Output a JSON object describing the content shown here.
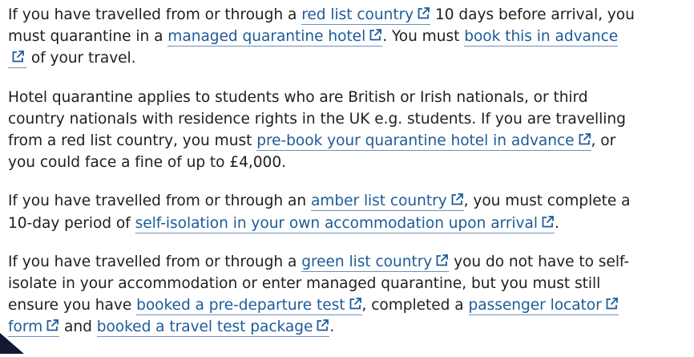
{
  "paragraphs": [
    {
      "lines": [
        [
          {
            "text": "If you have travelled from or through a "
          },
          {
            "link": "red list country"
          },
          {
            "text": " 10 days before arrival, you"
          }
        ],
        [
          {
            "text": "must quarantine in a "
          },
          {
            "link": "managed quarantine hotel"
          },
          {
            "text": ". You must "
          },
          {
            "link": "book this in advance"
          }
        ],
        [
          {
            "icon_only": true
          },
          {
            "text": " of your travel."
          }
        ]
      ]
    },
    {
      "lines": [
        [
          {
            "text": "Hotel quarantine applies to students who are British or Irish nationals, or third"
          }
        ],
        [
          {
            "text": "country nationals with residence rights in the UK e.g. students. If you are travelling"
          }
        ],
        [
          {
            "text": "from a red list country, you must "
          },
          {
            "link": "pre-book your quarantine hotel in advance"
          },
          {
            "text": ", or"
          }
        ],
        [
          {
            "text": "you could face a fine of up to £4,000."
          }
        ]
      ]
    },
    {
      "lines": [
        [
          {
            "text": "If you have travelled from or through an "
          },
          {
            "link": "amber list country"
          },
          {
            "text": ", you must complete a"
          }
        ],
        [
          {
            "text": "10-day period of "
          },
          {
            "link": "self-isolation in your own accommodation upon arrival"
          },
          {
            "text": "."
          }
        ]
      ]
    },
    {
      "lines": [
        [
          {
            "text": "If you have travelled from or through a "
          },
          {
            "link": "green list country"
          },
          {
            "text": " you do not have to self-"
          }
        ],
        [
          {
            "text": "isolate in your accommodation or enter managed quarantine, but you must still"
          }
        ],
        [
          {
            "text": "ensure you have "
          },
          {
            "link": "booked a pre-departure test"
          },
          {
            "text": ", completed a "
          },
          {
            "link": "passenger locator"
          }
        ],
        [
          {
            "link": "form"
          },
          {
            "text": " and "
          },
          {
            "link": "booked a travel test package"
          },
          {
            "text": "."
          }
        ]
      ]
    }
  ],
  "icons": {
    "external_link": "external-link-icon",
    "corner": "corner-triangle-icon"
  },
  "colors": {
    "text": "#1f1f1f",
    "link": "#1d5b9a",
    "link_underline": "#6f90b9",
    "corner": "#121a33"
  }
}
